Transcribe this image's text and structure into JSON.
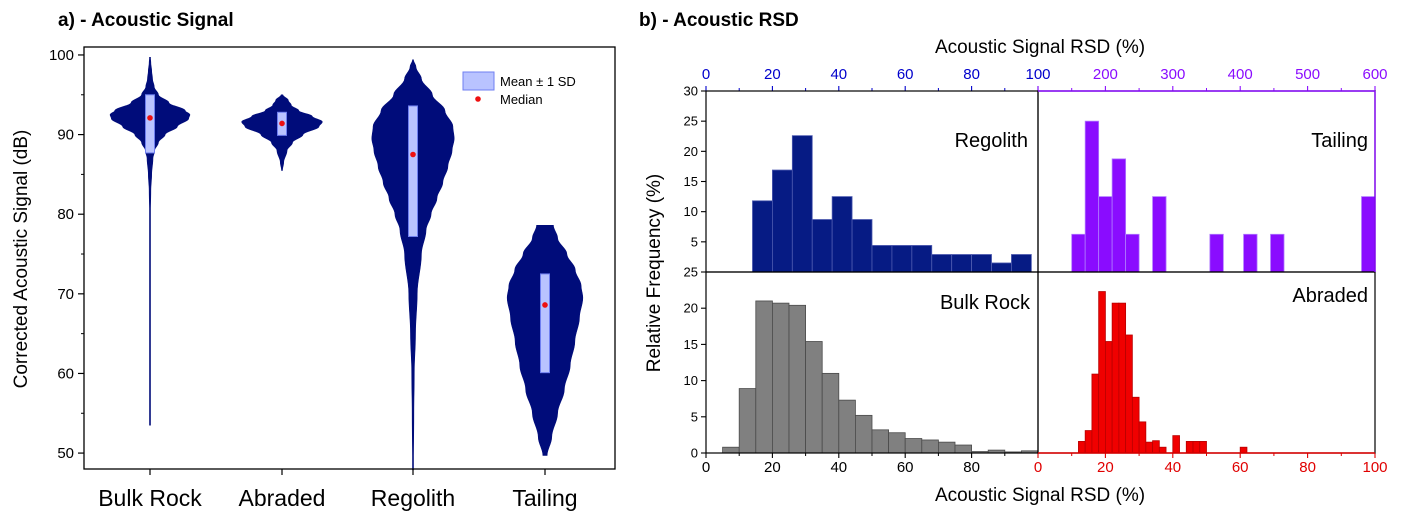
{
  "panel_a": {
    "title": "a) - Acoustic Signal"
  },
  "panel_b": {
    "title": "b) - Acoustic RSD"
  },
  "colors": {
    "violin": "#000c7a",
    "sd_fill": "#b9c3ff",
    "sd_edge": "#6f7ff0",
    "median": "#ee1010",
    "regolith": "#061b84",
    "tailing": "#8a0cff",
    "bulk_rock": "#808080",
    "abraded": "#f00000",
    "top_left_axis": "#0000cc",
    "top_right_axis": "#8a0cff",
    "bottom_right_axis": "#e00000"
  },
  "chart_data": [
    {
      "type": "violin",
      "title": "a) - Acoustic Signal",
      "xlabel": "",
      "ylabel": "Corrected Acoustic Signal (dB)",
      "categories": [
        "Bulk Rock",
        "Abraded",
        "Regolith",
        "Tailing"
      ],
      "ylim": [
        48,
        101
      ],
      "yticks": [
        50,
        60,
        70,
        80,
        90,
        100
      ],
      "legend": {
        "placement": "top-right",
        "entries": [
          "Mean ± 1 SD",
          "Median"
        ]
      },
      "series": [
        {
          "category": "Bulk Rock",
          "median": 92.1,
          "sd_low": 87.7,
          "sd_high": 95.0,
          "min": 53.5,
          "max": 99.7,
          "density": [
            [
              53.5,
              0.002
            ],
            [
              70,
              0.002
            ],
            [
              75,
              0.005
            ],
            [
              80,
              0.01
            ],
            [
              83,
              0.02
            ],
            [
              85,
              0.04
            ],
            [
              87,
              0.07
            ],
            [
              88,
              0.11
            ],
            [
              89,
              0.2
            ],
            [
              90,
              0.36
            ],
            [
              91,
              0.65
            ],
            [
              92,
              0.92
            ],
            [
              92.5,
              0.95
            ],
            [
              93,
              0.84
            ],
            [
              94,
              0.45
            ],
            [
              95,
              0.2
            ],
            [
              96,
              0.1
            ],
            [
              97,
              0.06
            ],
            [
              98,
              0.04
            ],
            [
              99,
              0.02
            ],
            [
              99.7,
              0.01
            ]
          ]
        },
        {
          "category": "Abraded",
          "median": 91.4,
          "sd_low": 89.9,
          "sd_high": 92.8,
          "min": 85.5,
          "max": 95.0,
          "density": [
            [
              85.5,
              0.01
            ],
            [
              86.5,
              0.04
            ],
            [
              88,
              0.12
            ],
            [
              89,
              0.25
            ],
            [
              90,
              0.5
            ],
            [
              91,
              0.88
            ],
            [
              91.6,
              0.96
            ],
            [
              92.3,
              0.72
            ],
            [
              93,
              0.4
            ],
            [
              93.7,
              0.22
            ],
            [
              94.3,
              0.15
            ],
            [
              95,
              0.02
            ]
          ]
        },
        {
          "category": "Regolith",
          "median": 87.5,
          "sd_low": 77.2,
          "sd_high": 93.6,
          "min": 47.9,
          "max": 99.4,
          "density": [
            [
              47.9,
              0.01
            ],
            [
              55,
              0.02
            ],
            [
              60,
              0.03
            ],
            [
              65,
              0.06
            ],
            [
              70,
              0.1
            ],
            [
              75,
              0.2
            ],
            [
              78,
              0.31
            ],
            [
              80,
              0.43
            ],
            [
              82,
              0.57
            ],
            [
              84,
              0.71
            ],
            [
              86,
              0.83
            ],
            [
              88,
              0.93
            ],
            [
              89.5,
              0.98
            ],
            [
              91,
              0.95
            ],
            [
              93,
              0.76
            ],
            [
              95,
              0.46
            ],
            [
              97,
              0.2
            ],
            [
              98.5,
              0.07
            ],
            [
              99.4,
              0.01
            ]
          ]
        },
        {
          "category": "Tailing",
          "median": 68.6,
          "sd_low": 60.1,
          "sd_high": 72.5,
          "min": 49.7,
          "max": 78.6,
          "density": [
            [
              49.7,
              0.05
            ],
            [
              52,
              0.16
            ],
            [
              55,
              0.3
            ],
            [
              58,
              0.46
            ],
            [
              61,
              0.6
            ],
            [
              64,
              0.71
            ],
            [
              67,
              0.82
            ],
            [
              69.5,
              0.9
            ],
            [
              71,
              0.86
            ],
            [
              73,
              0.72
            ],
            [
              75,
              0.52
            ],
            [
              77,
              0.3
            ],
            [
              78.6,
              0.2
            ]
          ]
        }
      ]
    },
    {
      "type": "bar",
      "title": "b) - Acoustic RSD",
      "xlabel_top": "Acoustic Signal RSD (%)",
      "xlabel_bottom": "Acoustic Signal RSD (%)",
      "ylabel": "Relative Frequency (%)",
      "panels": [
        {
          "name": "Regolith",
          "xlim": [
            0,
            100
          ],
          "ylim": [
            0,
            30
          ],
          "xticks": [
            0,
            20,
            40,
            60,
            80,
            100
          ],
          "yticks": [
            5,
            10,
            15,
            20,
            25,
            30
          ],
          "ytick_top_label": "25",
          "bins": [
            [
              14,
              20,
              11.8
            ],
            [
              20,
              26,
              16.9
            ],
            [
              26,
              32,
              22.6
            ],
            [
              32,
              38,
              8.7
            ],
            [
              38,
              44,
              12.5
            ],
            [
              44,
              50,
              8.7
            ],
            [
              50,
              56,
              4.4
            ],
            [
              56,
              62,
              4.4
            ],
            [
              62,
              68,
              4.4
            ],
            [
              68,
              74,
              2.9
            ],
            [
              74,
              80,
              2.9
            ],
            [
              80,
              86,
              2.9
            ],
            [
              86,
              92,
              1.5
            ],
            [
              92,
              98,
              2.9
            ]
          ]
        },
        {
          "name": "Tailing",
          "xlim": [
            100,
            600
          ],
          "ylim": [
            0,
            30
          ],
          "xticks": [
            100,
            200,
            300,
            400,
            500,
            600
          ],
          "bins": [
            [
              150,
              170,
              6.25
            ],
            [
              170,
              190,
              25
            ],
            [
              190,
              210,
              12.5
            ],
            [
              210,
              230,
              18.75
            ],
            [
              230,
              250,
              6.25
            ],
            [
              270,
              290,
              12.5
            ],
            [
              355,
              375,
              6.25
            ],
            [
              405,
              425,
              6.25
            ],
            [
              445,
              465,
              6.25
            ],
            [
              580,
              600,
              12.5
            ]
          ]
        },
        {
          "name": "Bulk Rock",
          "xlim": [
            0,
            100
          ],
          "ylim": [
            0,
            25
          ],
          "xticks": [
            0,
            20,
            40,
            60,
            80
          ],
          "yticks": [
            0,
            5,
            10,
            15,
            20,
            25
          ],
          "bins": [
            [
              5,
              10,
              0.8
            ],
            [
              10,
              15,
              8.9
            ],
            [
              15,
              20,
              21
            ],
            [
              20,
              25,
              20.7
            ],
            [
              25,
              30,
              20.4
            ],
            [
              30,
              35,
              15.4
            ],
            [
              35,
              40,
              11
            ],
            [
              40,
              45,
              7.3
            ],
            [
              45,
              50,
              5.2
            ],
            [
              50,
              55,
              3.2
            ],
            [
              55,
              60,
              2.8
            ],
            [
              60,
              65,
              2
            ],
            [
              65,
              70,
              1.8
            ],
            [
              70,
              75,
              1.5
            ],
            [
              75,
              80,
              1.1
            ],
            [
              80,
              85,
              0.2
            ],
            [
              85,
              90,
              0.4
            ],
            [
              90,
              95,
              0.15
            ],
            [
              95,
              100,
              0.3
            ]
          ]
        },
        {
          "name": "Abraded",
          "xlim": [
            0,
            100
          ],
          "ylim": [
            0,
            25
          ],
          "xticks": [
            0,
            20,
            40,
            60,
            80,
            100
          ],
          "bins": [
            [
              12,
              14,
              1.6
            ],
            [
              14,
              16,
              3.1
            ],
            [
              16,
              18,
              10.9
            ],
            [
              18,
              20,
              22.3
            ],
            [
              20,
              22,
              15.4
            ],
            [
              22,
              24,
              20.7
            ],
            [
              24,
              26,
              20.7
            ],
            [
              26,
              28,
              16.3
            ],
            [
              28,
              30,
              7.7
            ],
            [
              30,
              32,
              4.3
            ],
            [
              32,
              34,
              1.5
            ],
            [
              34,
              36,
              1.7
            ],
            [
              36,
              38,
              0.8
            ],
            [
              40,
              42,
              2.4
            ],
            [
              44,
              46,
              1.6
            ],
            [
              46,
              48,
              1.6
            ],
            [
              48,
              50,
              1.6
            ],
            [
              60,
              62,
              0.8
            ]
          ]
        }
      ]
    }
  ]
}
